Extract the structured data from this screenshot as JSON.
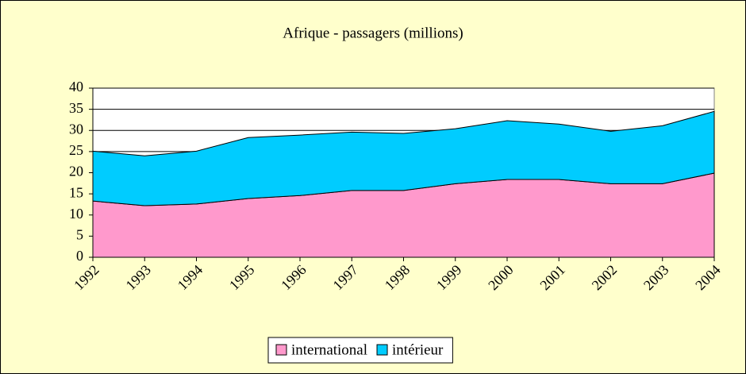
{
  "chart_data": {
    "type": "stacked_area",
    "title": "Afrique - passagers (millions)",
    "categories": [
      "1992",
      "1993",
      "1994",
      "1995",
      "1996",
      "1997",
      "1998",
      "1999",
      "2000",
      "2001",
      "2002",
      "2003",
      "2004"
    ],
    "series": [
      {
        "name": "international",
        "color": "#ff99cc",
        "values": [
          13.3,
          12.2,
          12.6,
          13.9,
          14.6,
          15.8,
          15.8,
          17.4,
          18.4,
          18.4,
          17.4,
          17.4,
          19.9
        ]
      },
      {
        "name": "intérieur",
        "color": "#00ccff",
        "values": [
          11.8,
          11.8,
          12.5,
          14.4,
          14.3,
          13.8,
          13.5,
          13.0,
          13.9,
          13.1,
          12.4,
          13.7,
          14.6
        ]
      }
    ],
    "ylim": [
      0,
      40
    ],
    "yticks": [
      0,
      5,
      10,
      15,
      20,
      25,
      30,
      35,
      40
    ],
    "grid": true,
    "legend": "bottom"
  }
}
